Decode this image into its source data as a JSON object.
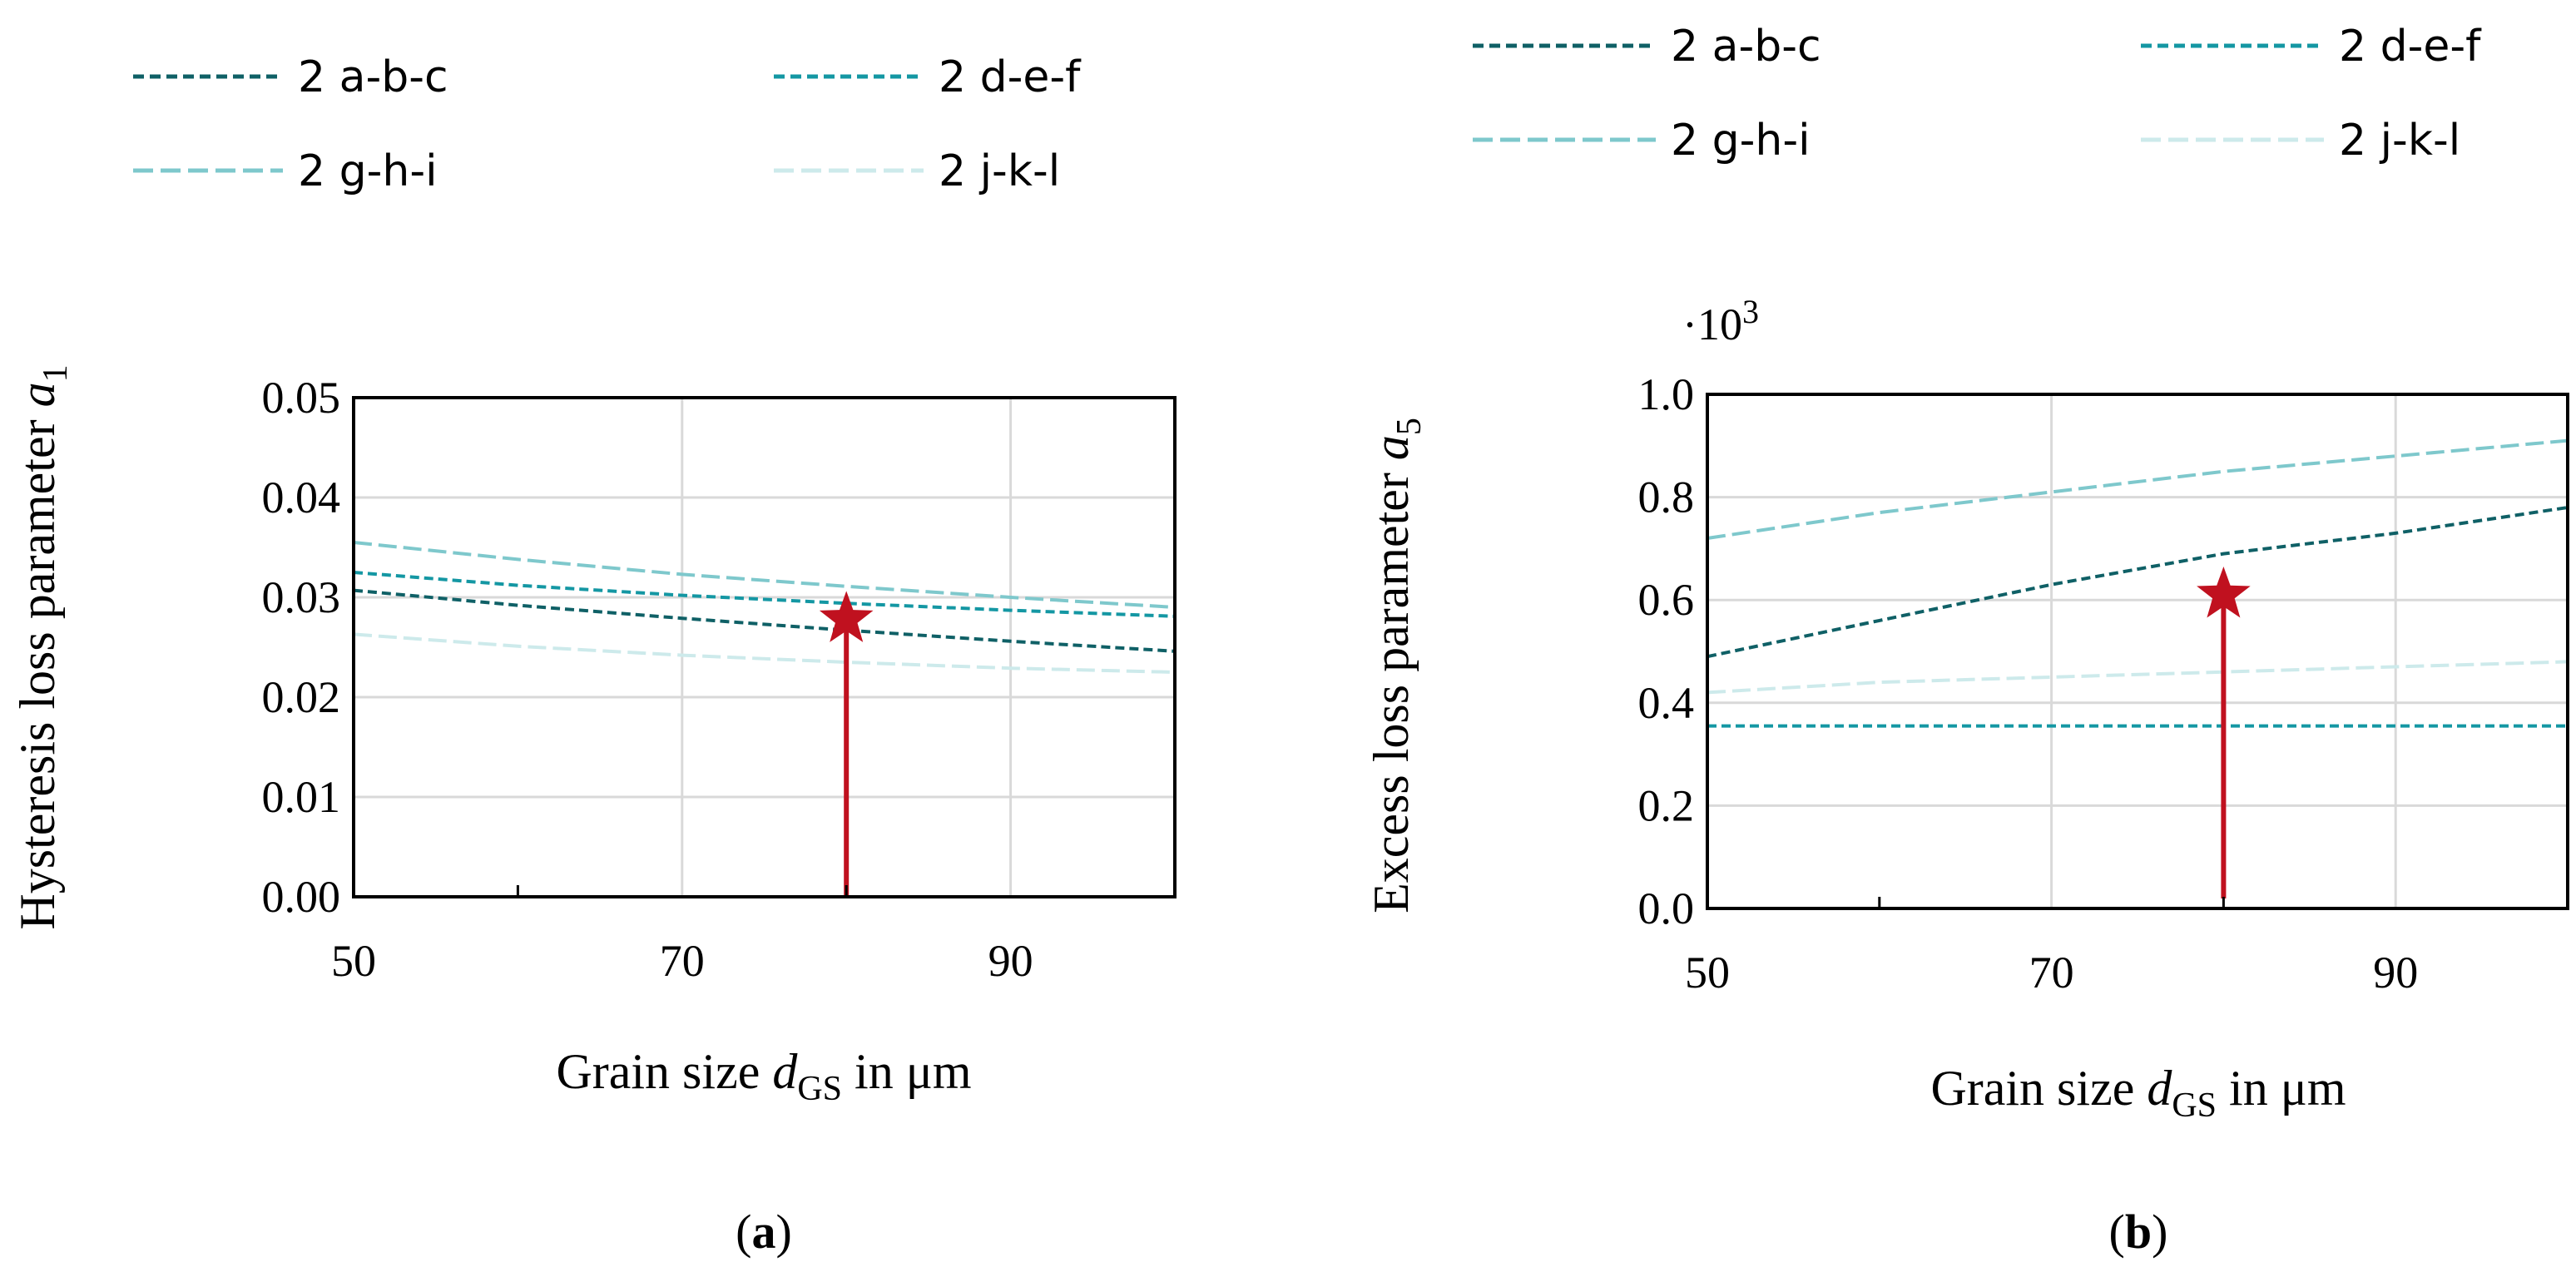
{
  "colors": {
    "series_2abc": "#0f6066",
    "series_2def": "#1497a3",
    "series_2ghi": "#7ec8cc",
    "series_2jkl": "#cdeaeb",
    "marker": "#c0111f",
    "grid": "#d9d9d9",
    "axis": "#000000"
  },
  "chart_data": [
    {
      "type": "line",
      "panel_label": "a",
      "xlabel": {
        "prefix": "Grain size ",
        "var": "d",
        "sub": "GS",
        "suffix": " in μm"
      },
      "ylabel": {
        "prefix": "Hysteresis loss parameter ",
        "var": "a",
        "sub": "1"
      },
      "xlim": [
        50,
        100
      ],
      "ylim": [
        0,
        0.05
      ],
      "xticks": [
        50,
        70,
        90
      ],
      "xtick_labels": [
        "50",
        "70",
        "90"
      ],
      "yticks": [
        0,
        0.01,
        0.02,
        0.03,
        0.04,
        0.05
      ],
      "ytick_labels": [
        "0.00",
        "0.01",
        "0.02",
        "0.03",
        "0.04",
        "0.05"
      ],
      "x_minor_ticks": [
        60,
        80
      ],
      "grid": true,
      "scale_label": "",
      "legend_position": "top",
      "series": [
        {
          "name": "2 a-b-c",
          "color_key": "series_2abc",
          "x": [
            50,
            60,
            70,
            80,
            90,
            100
          ],
          "values": [
            0.0307,
            0.0292,
            0.0279,
            0.0267,
            0.0256,
            0.0246
          ]
        },
        {
          "name": "2 d-e-f",
          "color_key": "series_2def",
          "x": [
            50,
            60,
            70,
            80,
            90,
            100
          ],
          "values": [
            0.0325,
            0.0312,
            0.0302,
            0.0294,
            0.0287,
            0.0281
          ]
        },
        {
          "name": "2 g-h-i",
          "color_key": "series_2ghi",
          "x": [
            50,
            60,
            70,
            80,
            90,
            100
          ],
          "values": [
            0.0355,
            0.0338,
            0.0323,
            0.0311,
            0.03,
            0.029
          ]
        },
        {
          "name": "2 j-k-l",
          "color_key": "series_2jkl",
          "x": [
            50,
            60,
            70,
            80,
            90,
            100
          ],
          "values": [
            0.0263,
            0.0251,
            0.0242,
            0.0235,
            0.0229,
            0.0225
          ]
        }
      ],
      "marker_point": {
        "x": 80,
        "y": 0.0278
      }
    },
    {
      "type": "line",
      "panel_label": "b",
      "xlabel": {
        "prefix": "Grain size ",
        "var": "d",
        "sub": "GS",
        "suffix": " in μm"
      },
      "ylabel": {
        "prefix": "Excess loss parameter ",
        "var": "a",
        "sub": "5"
      },
      "xlim": [
        50,
        100
      ],
      "ylim": [
        0,
        1.0
      ],
      "xticks": [
        50,
        70,
        90
      ],
      "xtick_labels": [
        "50",
        "70",
        "90"
      ],
      "yticks": [
        0,
        0.2,
        0.4,
        0.6,
        0.8,
        1.0
      ],
      "ytick_labels": [
        "0.0",
        "0.2",
        "0.4",
        "0.6",
        "0.8",
        "1.0"
      ],
      "x_minor_ticks": [
        60,
        80
      ],
      "grid": true,
      "scale_label": "·10",
      "scale_exponent": "3",
      "legend_position": "top",
      "series": [
        {
          "name": "2 a-b-c",
          "color_key": "series_2abc",
          "x": [
            50,
            60,
            70,
            80,
            90,
            100
          ],
          "values": [
            0.49,
            0.56,
            0.63,
            0.69,
            0.73,
            0.78
          ]
        },
        {
          "name": "2 d-e-f",
          "color_key": "series_2def",
          "x": [
            50,
            100
          ],
          "values": [
            0.355,
            0.355
          ]
        },
        {
          "name": "2 g-h-i",
          "color_key": "series_2ghi",
          "x": [
            50,
            60,
            70,
            80,
            90,
            100
          ],
          "values": [
            0.72,
            0.77,
            0.81,
            0.85,
            0.88,
            0.91
          ]
        },
        {
          "name": "2 j-k-l",
          "color_key": "series_2jkl",
          "x": [
            50,
            60,
            70,
            80,
            90,
            100
          ],
          "values": [
            0.42,
            0.44,
            0.45,
            0.46,
            0.47,
            0.48
          ]
        }
      ],
      "marker_point": {
        "x": 80,
        "y": 0.61
      }
    }
  ]
}
